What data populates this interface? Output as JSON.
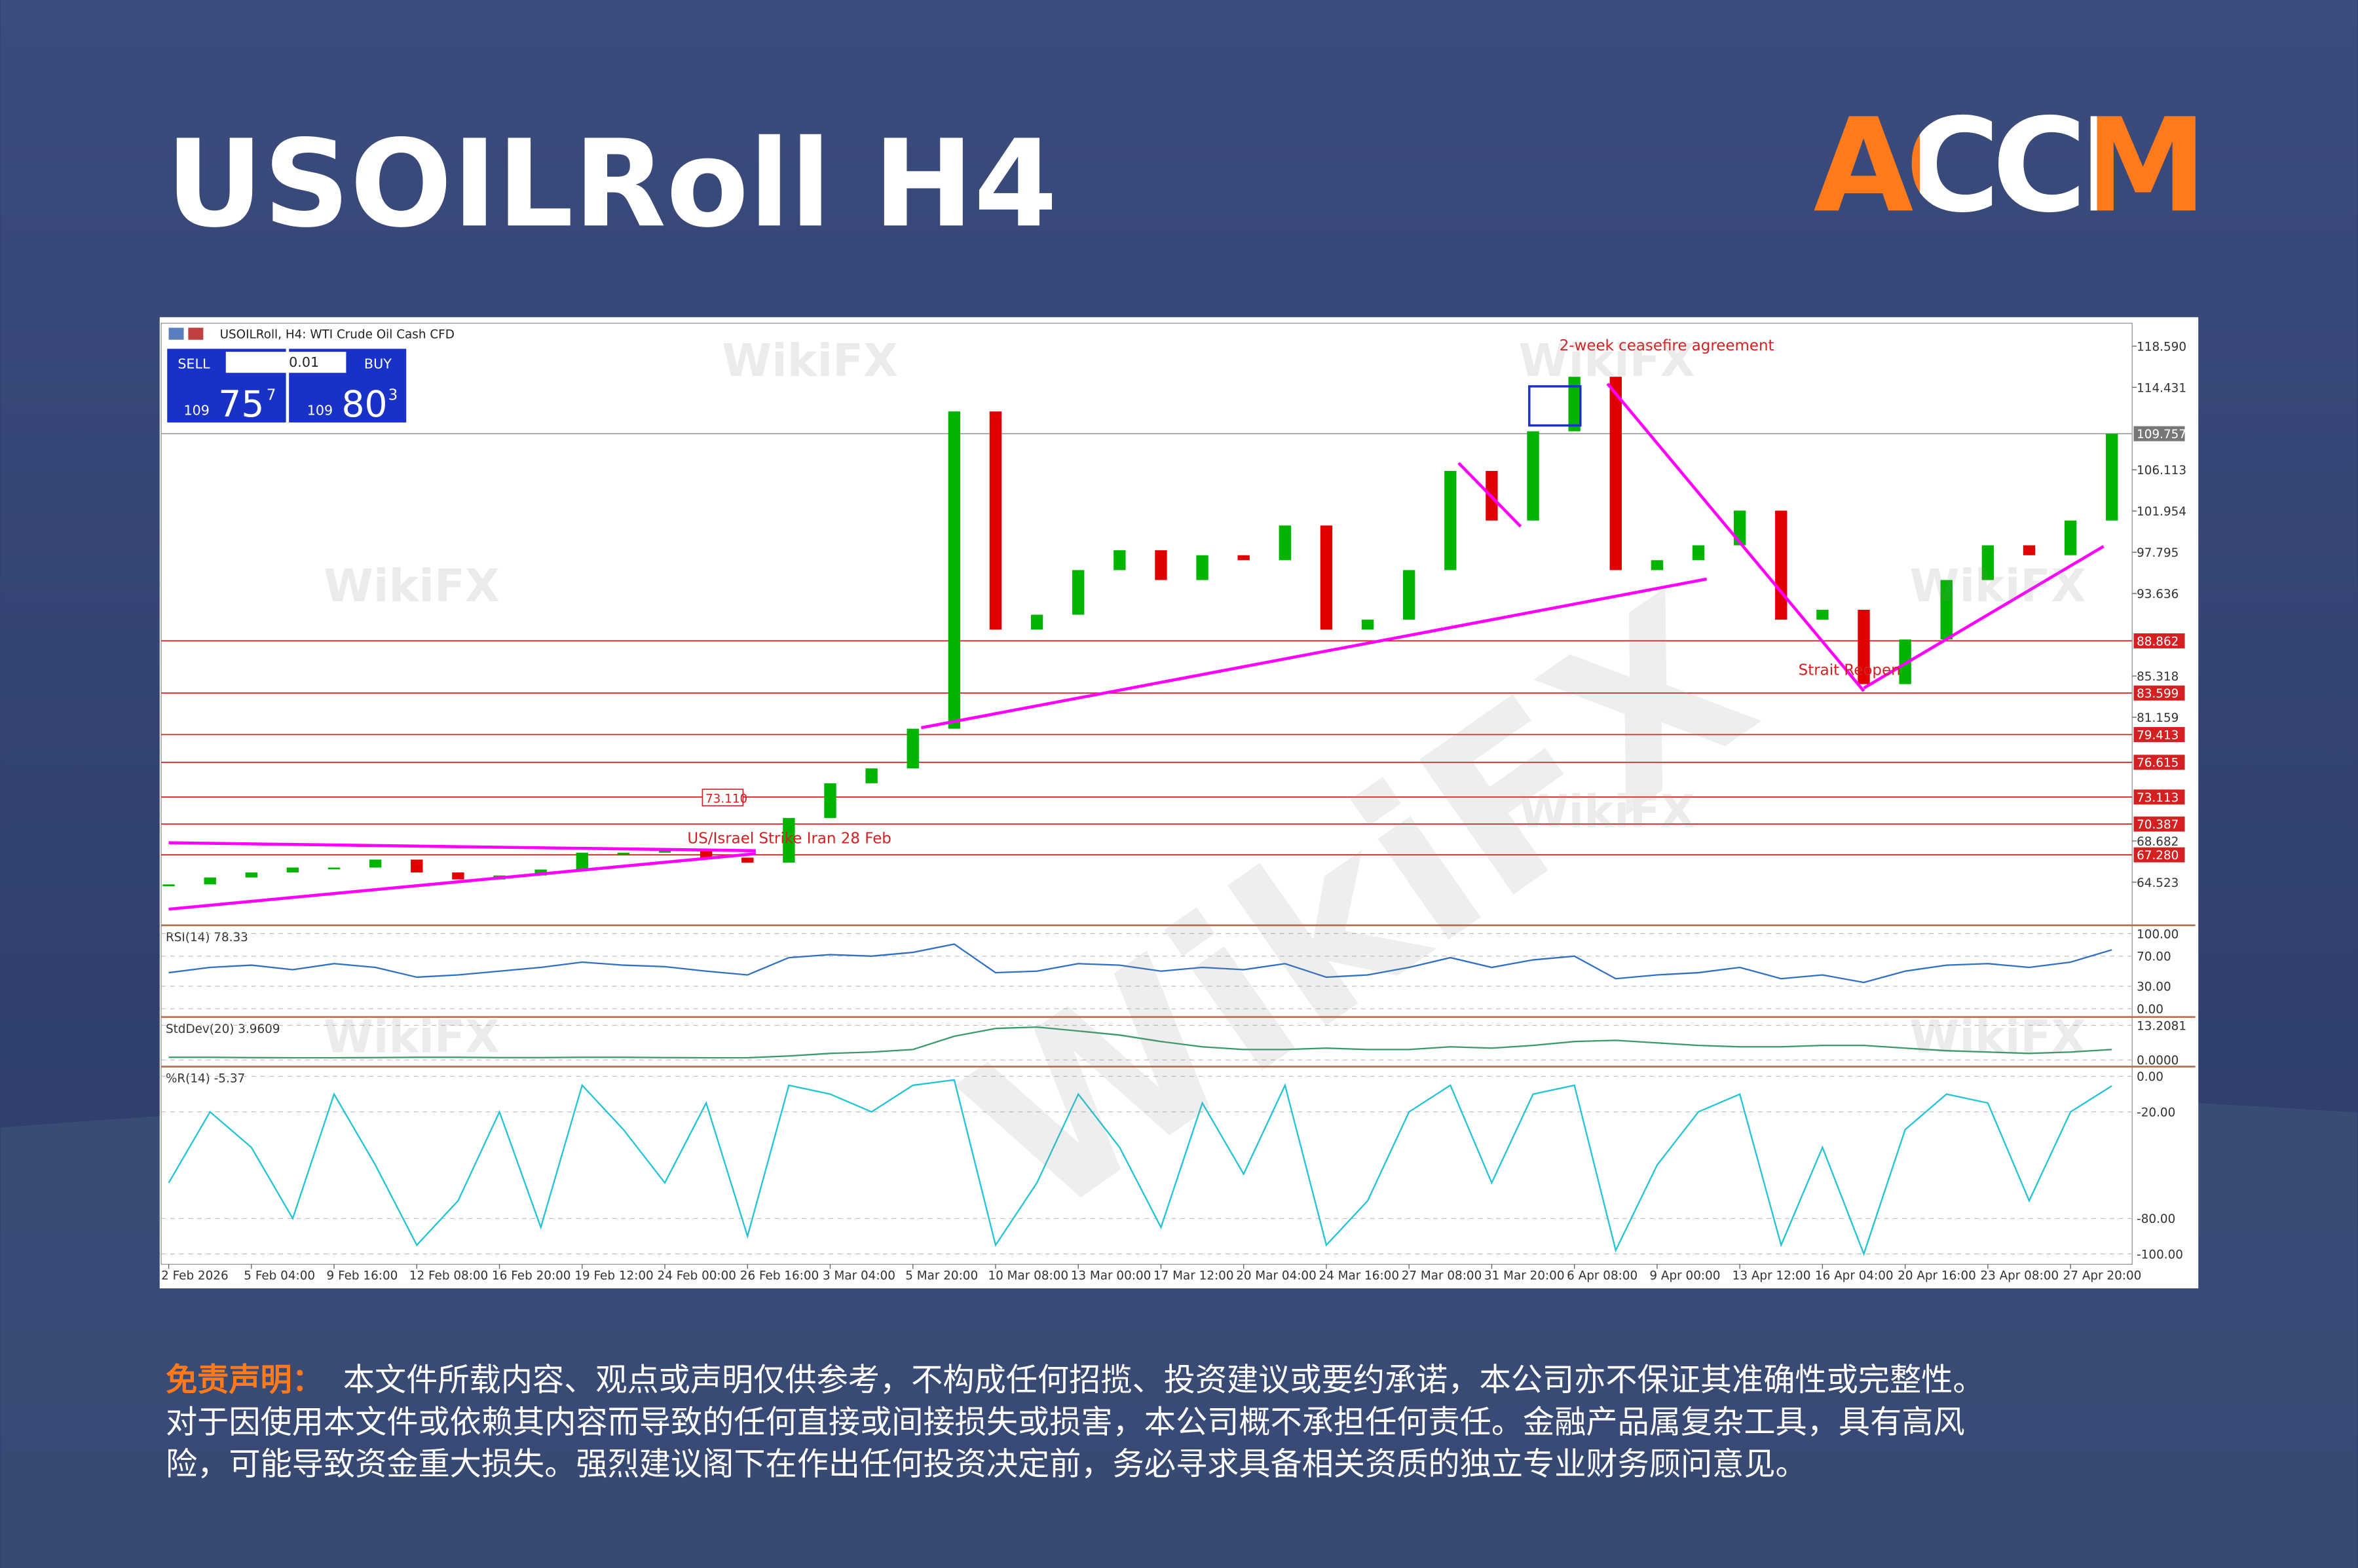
{
  "title": "USOILRoll H4",
  "logo": "ACCM",
  "watermark": "WikiFX",
  "chart_data": {
    "type": "candlestick",
    "title": "USOILRoll, H4: WTI Crude Oil Cash CFD",
    "categories": [
      "2 Feb 2026",
      null,
      "5 Feb 04:00",
      null,
      "9 Feb 16:00",
      null,
      "12 Feb 08:00",
      null,
      "16 Feb 20:00",
      null,
      "19 Feb 12:00",
      null,
      "24 Feb 00:00",
      null,
      "26 Feb 16:00",
      null,
      "3 Mar 04:00",
      null,
      "5 Mar 20:00",
      null,
      "10 Mar 08:00",
      null,
      "13 Mar 00:00",
      null,
      "17 Mar 12:00",
      null,
      "20 Mar 04:00",
      null,
      "24 Mar 16:00",
      null,
      "27 Mar 08:00",
      null,
      "31 Mar 20:00",
      null,
      "6 Apr 08:00",
      null,
      "9 Apr 00:00",
      null,
      "13 Apr 12:00",
      null,
      "16 Apr 04:00",
      null,
      "20 Apr 16:00",
      null,
      "23 Apr 08:00",
      null,
      "27 Apr 20:00",
      null
    ],
    "values": [
      64.3,
      65.0,
      65.5,
      66.0,
      66.0,
      66.8,
      65.5,
      64.8,
      65.2,
      65.8,
      67.5,
      67.5,
      67.8,
      67.0,
      66.5,
      71.0,
      74.5,
      76.0,
      80.0,
      112.0,
      90.0,
      91.5,
      96.0,
      98.0,
      95.0,
      97.5,
      97.0,
      100.5,
      90.0,
      91.0,
      96.0,
      106.0,
      101.0,
      110.0,
      115.5,
      96.0,
      97.0,
      98.5,
      102.0,
      91.0,
      92.0,
      84.5,
      89.0,
      95.0,
      98.5,
      97.5,
      101.0,
      109.757
    ],
    "up_color": "#00b400",
    "down_color": "#e00000",
    "ylim": [
      60.4,
      120.9
    ],
    "yticks": [
      {
        "value": 118.59,
        "label": "118.590"
      },
      114.431,
      106.113,
      101.954,
      97.795,
      93.636,
      85.318,
      81.159,
      68.682,
      64.523
    ],
    "last_price": 109.757,
    "levels": [
      88.862,
      83.599,
      79.413,
      76.615,
      73.113,
      70.387,
      {
        "value": 67.28,
        "label": "67.280"
      }
    ],
    "level_color": "#d42020",
    "trendlines": [
      {
        "points": [
          [
            0,
            61.8
          ],
          [
            14.2,
            67.4
          ]
        ]
      },
      {
        "points": [
          [
            0,
            68.5
          ],
          [
            14.2,
            67.7
          ]
        ]
      },
      {
        "points": [
          [
            18.2,
            80.1
          ],
          [
            37.2,
            95.1
          ]
        ]
      },
      {
        "points": [
          [
            31.2,
            106.8
          ],
          [
            32.7,
            100.4
          ]
        ]
      },
      {
        "points": [
          [
            34.8,
            114.8
          ],
          [
            41.0,
            83.8
          ]
        ]
      },
      {
        "points": [
          [
            41.0,
            84.1
          ],
          [
            46.8,
            98.4
          ]
        ]
      }
    ],
    "trendline_color": "#ff00ff",
    "annotations": [
      "2-week ceasefire agreement",
      "US/Israel Strike Iran 28 Feb",
      "Strait Reopen",
      "73.110"
    ],
    "trade_panel": {
      "sell": "SELL",
      "buy": "BUY",
      "lot": "0.01",
      "sell_price": [
        "109",
        "75",
        "7"
      ],
      "buy_price": [
        "109",
        "80",
        "3"
      ]
    },
    "indicators": [
      {
        "type": "line",
        "label": "RSI(14) 78.33",
        "color": "#2f6fc4",
        "values": [
          48,
          55,
          58,
          52,
          60,
          55,
          42,
          45,
          50,
          55,
          62,
          58,
          56,
          50,
          45,
          68,
          72,
          70,
          75,
          86,
          48,
          50,
          60,
          58,
          50,
          55,
          52,
          60,
          42,
          45,
          55,
          68,
          55,
          65,
          70,
          40,
          45,
          48,
          55,
          40,
          45,
          35,
          50,
          58,
          60,
          55,
          62,
          78.33
        ],
        "ylim": [
          -10,
          108
        ],
        "yticks": [
          {
            "value": 100,
            "label": "100.00"
          },
          {
            "value": 70,
            "label": "70.00"
          },
          {
            "value": 30,
            "label": "30.00"
          },
          {
            "value": 0,
            "label": "0.00"
          }
        ]
      },
      {
        "type": "line",
        "label": "StdDev(20) 3.9609",
        "color": "#3a9a6a",
        "values": [
          1.0,
          1.0,
          0.9,
          0.8,
          0.8,
          0.9,
          1.0,
          1.0,
          0.9,
          0.9,
          1.0,
          1.0,
          0.9,
          0.8,
          0.8,
          1.5,
          2.5,
          3.0,
          4.0,
          9.0,
          12.0,
          12.5,
          11.0,
          9.5,
          7.0,
          5.0,
          4.0,
          4.0,
          4.5,
          4.0,
          4.0,
          5.0,
          4.5,
          5.5,
          7.0,
          7.5,
          6.5,
          5.5,
          5.0,
          5.0,
          5.5,
          5.5,
          4.5,
          3.5,
          3.0,
          2.5,
          3.0,
          3.9609
        ],
        "ylim": [
          -1.7,
          15.5
        ],
        "yticks": [
          13.2081,
          {
            "value": 0,
            "label": "0.0000"
          }
        ]
      },
      {
        "type": "line",
        "label": "%R(14) -5.37",
        "color": "#20c4d4",
        "values": [
          -60,
          -20,
          -40,
          -80,
          -10,
          -50,
          -95,
          -70,
          -20,
          -85,
          -5,
          -30,
          -60,
          -15,
          -90,
          -5,
          -10,
          -20,
          -5,
          -2,
          -95,
          -60,
          -10,
          -40,
          -85,
          -15,
          -55,
          -5,
          -95,
          -70,
          -20,
          -5,
          -60,
          -10,
          -5,
          -98,
          -50,
          -20,
          -10,
          -95,
          -40,
          -100,
          -30,
          -10,
          -15,
          -70,
          -20,
          -5.37
        ],
        "ylim": [
          -105,
          4.2
        ],
        "yticks": [
          {
            "value": 0,
            "label": "0.00"
          },
          {
            "value": -20,
            "label": "-20.00"
          },
          {
            "value": -80,
            "label": "-80.00"
          },
          {
            "value": -100,
            "label": "-100.00"
          }
        ]
      }
    ]
  },
  "disclaimer": {
    "label": "免责声明：",
    "lines": [
      "本文件所载内容、观点或声明仅供参考，不构成任何招揽、投资建议或要约承诺，本公司亦不保证其准确性或完整性。",
      "对于因使用本文件或依赖其内容而导致的任何直接或间接损失或损害，本公司概不承担任何责任。金融产品属复杂工具，具有高风",
      "险，可能导致资金重大损失。强烈建议阁下在作出任何投资决定前，务必寻求具备相关资质的独立专业财务顾问意见。"
    ]
  }
}
